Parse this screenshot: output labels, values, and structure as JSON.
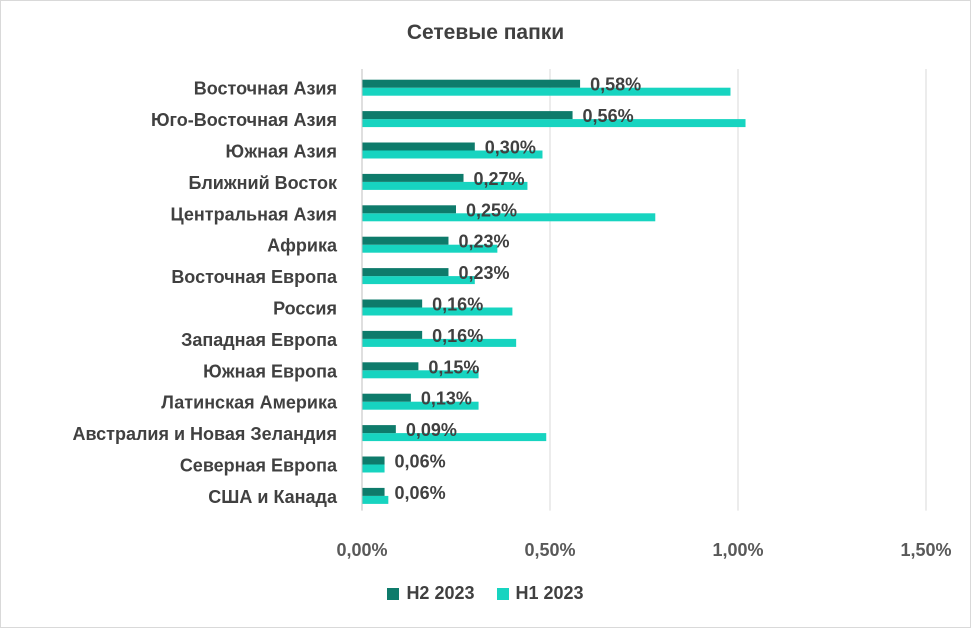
{
  "chart_data": {
    "type": "bar",
    "orientation": "horizontal",
    "title": "Сетевые папки",
    "categories": [
      "Восточная Азия",
      "Юго-Восточная Азия",
      "Южная Азия",
      "Ближний Восток",
      "Центральная Азия",
      "Африка",
      "Восточная Европа",
      "Россия",
      "Западная Европа",
      "Южная Европа",
      "Латинская Америка",
      "Австралия и Новая Зеландия",
      "Северная Европа",
      "США и Канада"
    ],
    "series": [
      {
        "name": "H2 2023",
        "color": "#0e7b6b",
        "values": [
          0.58,
          0.56,
          0.3,
          0.27,
          0.25,
          0.23,
          0.23,
          0.16,
          0.16,
          0.15,
          0.13,
          0.09,
          0.06,
          0.06
        ],
        "data_labels": [
          "0,58%",
          "0,56%",
          "0,30%",
          "0,27%",
          "0,25%",
          "0,23%",
          "0,23%",
          "0,16%",
          "0,16%",
          "0,15%",
          "0,13%",
          "0,09%",
          "0,06%",
          "0,06%"
        ]
      },
      {
        "name": "H1 2023",
        "color": "#17d4c0",
        "values": [
          0.98,
          1.02,
          0.48,
          0.44,
          0.78,
          0.36,
          0.3,
          0.4,
          0.41,
          0.31,
          0.31,
          0.49,
          0.06,
          0.07
        ]
      }
    ],
    "xlim": [
      0,
      1.5
    ],
    "x_ticks": [
      0,
      0.5,
      1.0,
      1.5
    ],
    "x_tick_labels": [
      "0,00%",
      "0,50%",
      "1,00%",
      "1,50%"
    ],
    "grid": true,
    "legend_position": "bottom"
  }
}
